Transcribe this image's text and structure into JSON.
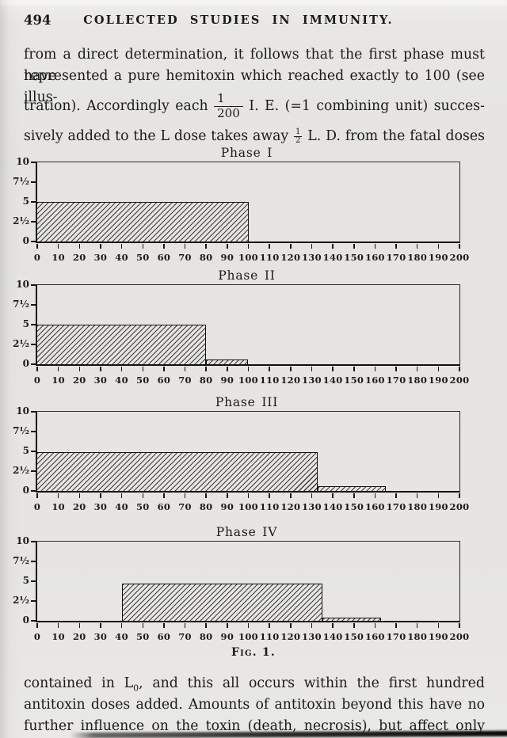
{
  "page": {
    "page_number": "494",
    "running_title": "COLLECTED STUDIES IN IMMUNITY.",
    "figure_caption": "Fig. 1."
  },
  "paragraph1": {
    "line1": "from a direct determination, it follows that the first phase must have",
    "line2": "represented a pure hemitoxin which reached exactly to 100 (see illus-",
    "line3_before": "tration). Accordingly each",
    "fraction_numerator": "1",
    "fraction_denominator": "200",
    "line3_after": "I. E. (=1 combining unit) succes-",
    "line4_before": "sively added to the L dose takes away",
    "half_numerator": "1",
    "half_denominator": "2",
    "line4_after": "L. D. from the fatal doses"
  },
  "paragraph2": {
    "line1_before": "contained in",
    "l_symbol": "L",
    "l_subscript": "0",
    "line1_after": ", and this all occurs within the first hundred",
    "line2": "antitoxin doses added. Amounts of antitoxin beyond this have no",
    "line3": "further influence on the toxin (death, necrosis), but affect only the"
  },
  "chart_data": {
    "type": "area",
    "figure_label": "Fig. 1.",
    "xlim": [
      0,
      200
    ],
    "ylim": [
      0,
      10
    ],
    "xticks": [
      0,
      10,
      20,
      30,
      40,
      50,
      60,
      70,
      80,
      90,
      100,
      110,
      120,
      130,
      140,
      150,
      160,
      170,
      180,
      190,
      200
    ],
    "yticks": [
      {
        "value": 10,
        "label": "10"
      },
      {
        "value": 7.5,
        "label": "7½"
      },
      {
        "value": 5,
        "label": "5"
      },
      {
        "value": 2.5,
        "label": "2½"
      },
      {
        "value": 0,
        "label": "0"
      }
    ],
    "hatch": "diagonal-forward",
    "ink_color": "#161616",
    "paper_color": "#e6e5e1",
    "charts": [
      {
        "title": "Phase I",
        "steps": [
          {
            "x0": 0,
            "x1": 100,
            "y": 5
          }
        ]
      },
      {
        "title": "Phase II",
        "steps": [
          {
            "x0": 0,
            "x1": 80,
            "y": 5
          },
          {
            "x0": 80,
            "x1": 100,
            "y": 0.6
          }
        ]
      },
      {
        "title": "Phase III",
        "steps": [
          {
            "x0": 0,
            "x1": 133,
            "y": 4.9
          },
          {
            "x0": 133,
            "x1": 165,
            "y": 0.6
          }
        ]
      },
      {
        "title": "Phase IV",
        "steps": [
          {
            "x0": 40,
            "x1": 135,
            "y": 4.7
          },
          {
            "x0": 135,
            "x1": 163,
            "y": 0.4
          }
        ]
      }
    ]
  }
}
